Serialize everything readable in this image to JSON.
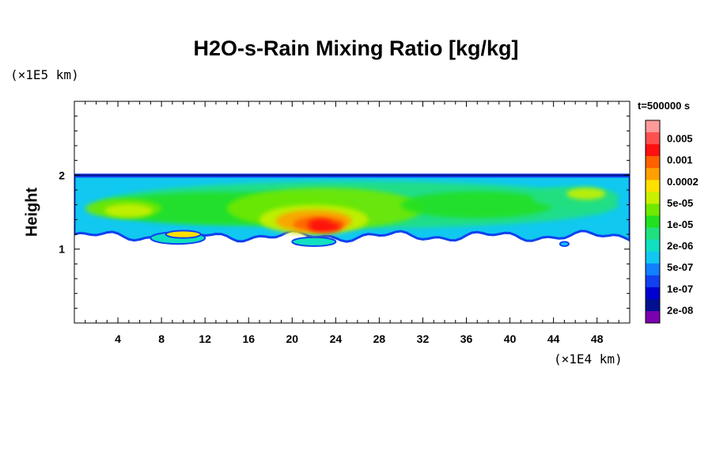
{
  "chart_data": {
    "type": "heatmap",
    "title": "H2O-s-Rain Mixing Ratio [kg/kg]",
    "xlabel": "",
    "ylabel": "Height",
    "x_unit_label": "(×1E4 km)",
    "y_unit_label": "(×1E5 km)",
    "time_label": "t=500000 s",
    "xlim": [
      0,
      51
    ],
    "ylim": [
      0,
      3
    ],
    "x_ticks": [
      4,
      8,
      12,
      16,
      20,
      24,
      28,
      32,
      36,
      40,
      44,
      48
    ],
    "y_ticks": [
      1,
      2
    ],
    "colorbar": {
      "labels": [
        "0.005",
        "0.001",
        "0.0002",
        "5e-05",
        "1e-05",
        "2e-06",
        "5e-07",
        "1e-07",
        "2e-08"
      ],
      "colors": [
        "#ff9a9a",
        "#ff5050",
        "#ff1010",
        "#ff6000",
        "#ffa000",
        "#ffe000",
        "#c8f000",
        "#70e800",
        "#20e020",
        "#20e080",
        "#10e0c0",
        "#10c8f0",
        "#1080ff",
        "#1040f0",
        "#0000d0",
        "#001090",
        "#7a00b0"
      ]
    },
    "field": {
      "top_height": 2.0,
      "base_height_range": [
        1.1,
        1.25
      ],
      "max_value_region": {
        "x": [
          20,
          25
        ],
        "height": [
          1.2,
          1.5
        ],
        "value": "0.001"
      }
    }
  }
}
